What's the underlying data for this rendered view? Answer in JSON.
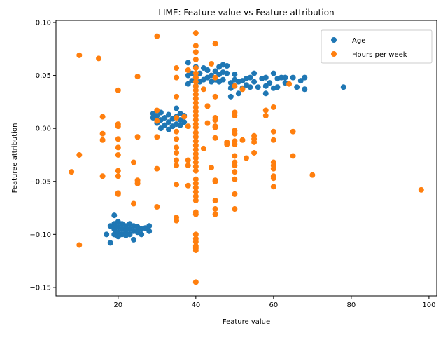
{
  "chart_data": {
    "type": "scatter",
    "title": "LIME: Feature value vs Feature attribution",
    "xlabel": "Feature value",
    "ylabel": "Featuree attribution",
    "xlim": [
      4,
      102
    ],
    "ylim": [
      -0.158,
      0.102
    ],
    "xticks": [
      20,
      40,
      60,
      80,
      100
    ],
    "yticks": [
      -0.15,
      -0.1,
      -0.05,
      0.0,
      0.05,
      0.1
    ],
    "xtick_labels": [
      "20",
      "40",
      "60",
      "80",
      "100"
    ],
    "ytick_labels": [
      "−0.15",
      "−0.10",
      "−0.05",
      "0.00",
      "0.05",
      "0.10"
    ],
    "grid": false,
    "legend_position": "top-right",
    "series": [
      {
        "name": "Age",
        "color": "#1f77b4",
        "points": [
          [
            17,
            -0.1
          ],
          [
            18,
            -0.108
          ],
          [
            18,
            -0.092
          ],
          [
            19,
            -0.082
          ],
          [
            19,
            -0.09
          ],
          [
            19,
            -0.095
          ],
          [
            19,
            -0.1
          ],
          [
            20,
            -0.088
          ],
          [
            20,
            -0.093
          ],
          [
            20,
            -0.098
          ],
          [
            20,
            -0.102
          ],
          [
            21,
            -0.09
          ],
          [
            21,
            -0.095
          ],
          [
            21,
            -0.1
          ],
          [
            22,
            -0.092
          ],
          [
            22,
            -0.097
          ],
          [
            22,
            -0.101
          ],
          [
            23,
            -0.09
          ],
          [
            23,
            -0.095
          ],
          [
            23,
            -0.1
          ],
          [
            24,
            -0.092
          ],
          [
            24,
            -0.097
          ],
          [
            24,
            -0.105
          ],
          [
            25,
            -0.093
          ],
          [
            25,
            -0.098
          ],
          [
            26,
            -0.095
          ],
          [
            26,
            -0.1
          ],
          [
            27,
            -0.094
          ],
          [
            28,
            -0.092
          ],
          [
            28,
            -0.097
          ],
          [
            29,
            0.01
          ],
          [
            29,
            0.014
          ],
          [
            30,
            0.005
          ],
          [
            30,
            0.012
          ],
          [
            31,
            0.0
          ],
          [
            31,
            0.008
          ],
          [
            31,
            0.015
          ],
          [
            32,
            0.003
          ],
          [
            32,
            0.01
          ],
          [
            33,
            -0.001
          ],
          [
            33,
            0.006
          ],
          [
            33,
            0.013
          ],
          [
            34,
            0.002
          ],
          [
            34,
            0.009
          ],
          [
            35,
            0.004
          ],
          [
            35,
            0.011
          ],
          [
            35,
            0.019
          ],
          [
            36,
            0.003
          ],
          [
            36,
            0.008
          ],
          [
            36,
            0.014
          ],
          [
            37,
            0.006
          ],
          [
            37,
            0.012
          ],
          [
            38,
            0.042
          ],
          [
            38,
            0.05
          ],
          [
            38,
            0.062
          ],
          [
            39,
            0.045
          ],
          [
            39,
            0.052
          ],
          [
            40,
            0.04
          ],
          [
            40,
            0.048
          ],
          [
            40,
            0.058
          ],
          [
            41,
            0.044
          ],
          [
            41,
            0.052
          ],
          [
            42,
            0.046
          ],
          [
            42,
            0.057
          ],
          [
            43,
            0.048
          ],
          [
            43,
            0.055
          ],
          [
            44,
            0.044
          ],
          [
            44,
            0.05
          ],
          [
            45,
            0.046
          ],
          [
            45,
            0.054
          ],
          [
            46,
            0.044
          ],
          [
            46,
            0.051
          ],
          [
            46,
            0.058
          ],
          [
            47,
            0.046
          ],
          [
            47,
            0.053
          ],
          [
            47,
            0.06
          ],
          [
            48,
            0.052
          ],
          [
            48,
            0.059
          ],
          [
            49,
            0.03
          ],
          [
            49,
            0.038
          ],
          [
            49,
            0.043
          ],
          [
            50,
            0.04
          ],
          [
            50,
            0.046
          ],
          [
            50,
            0.051
          ],
          [
            51,
            0.033
          ],
          [
            51,
            0.044
          ],
          [
            52,
            0.038
          ],
          [
            52,
            0.045
          ],
          [
            53,
            0.041
          ],
          [
            53,
            0.047
          ],
          [
            54,
            0.039
          ],
          [
            54,
            0.048
          ],
          [
            55,
            0.044
          ],
          [
            55,
            0.052
          ],
          [
            56,
            0.039
          ],
          [
            57,
            0.047
          ],
          [
            58,
            0.033
          ],
          [
            58,
            0.04
          ],
          [
            58,
            0.048
          ],
          [
            59,
            0.043
          ],
          [
            60,
            0.038
          ],
          [
            60,
            0.052
          ],
          [
            61,
            0.039
          ],
          [
            61,
            0.047
          ],
          [
            62,
            0.048
          ],
          [
            63,
            0.043
          ],
          [
            63,
            0.048
          ],
          [
            65,
            0.048
          ],
          [
            66,
            0.039
          ],
          [
            67,
            0.045
          ],
          [
            68,
            0.037
          ],
          [
            68,
            0.048
          ],
          [
            78,
            0.039
          ]
        ]
      },
      {
        "name": "Hours per week",
        "color": "#ff7f0e",
        "points": [
          [
            8,
            -0.041
          ],
          [
            10,
            0.069
          ],
          [
            10,
            -0.025
          ],
          [
            10,
            -0.11
          ],
          [
            15,
            0.066
          ],
          [
            16,
            0.011
          ],
          [
            16,
            -0.005
          ],
          [
            16,
            -0.011
          ],
          [
            16,
            -0.045
          ],
          [
            20,
            0.036
          ],
          [
            20,
            0.004
          ],
          [
            20,
            0.002
          ],
          [
            20,
            -0.01
          ],
          [
            20,
            -0.018
          ],
          [
            20,
            -0.025
          ],
          [
            20,
            -0.04
          ],
          [
            20,
            -0.045
          ],
          [
            20,
            -0.061
          ],
          [
            20,
            -0.062
          ],
          [
            24,
            -0.032
          ],
          [
            24,
            -0.071
          ],
          [
            25,
            0.049
          ],
          [
            25,
            -0.008
          ],
          [
            25,
            -0.049
          ],
          [
            25,
            -0.052
          ],
          [
            30,
            0.087
          ],
          [
            30,
            0.017
          ],
          [
            30,
            0.007
          ],
          [
            30,
            -0.008
          ],
          [
            30,
            -0.038
          ],
          [
            30,
            -0.074
          ],
          [
            35,
            0.057
          ],
          [
            35,
            0.048
          ],
          [
            35,
            0.03
          ],
          [
            35,
            0.01
          ],
          [
            35,
            -0.003
          ],
          [
            35,
            -0.01
          ],
          [
            35,
            -0.018
          ],
          [
            35,
            -0.023
          ],
          [
            35,
            -0.03
          ],
          [
            35,
            -0.035
          ],
          [
            35,
            -0.053
          ],
          [
            35,
            -0.084
          ],
          [
            35,
            -0.087
          ],
          [
            37,
            0.011
          ],
          [
            38,
            0.055
          ],
          [
            38,
            0.002
          ],
          [
            38,
            -0.03
          ],
          [
            38,
            -0.035
          ],
          [
            38,
            -0.054
          ],
          [
            40,
            0.09
          ],
          [
            40,
            0.078
          ],
          [
            40,
            0.072
          ],
          [
            40,
            0.065
          ],
          [
            40,
            0.057
          ],
          [
            40,
            0.052
          ],
          [
            40,
            0.048
          ],
          [
            40,
            0.044
          ],
          [
            40,
            0.04
          ],
          [
            40,
            0.036
          ],
          [
            40,
            0.032
          ],
          [
            40,
            0.028
          ],
          [
            40,
            0.024
          ],
          [
            40,
            0.02
          ],
          [
            40,
            0.016
          ],
          [
            40,
            0.012
          ],
          [
            40,
            0.008
          ],
          [
            40,
            0.004
          ],
          [
            40,
            0.001
          ],
          [
            40,
            -0.004
          ],
          [
            40,
            -0.008
          ],
          [
            40,
            -0.012
          ],
          [
            40,
            -0.016
          ],
          [
            40,
            -0.02
          ],
          [
            40,
            -0.024
          ],
          [
            40,
            -0.028
          ],
          [
            40,
            -0.032
          ],
          [
            40,
            -0.036
          ],
          [
            40,
            -0.04
          ],
          [
            40,
            -0.048
          ],
          [
            40,
            -0.052
          ],
          [
            40,
            -0.056
          ],
          [
            40,
            -0.06
          ],
          [
            40,
            -0.064
          ],
          [
            40,
            -0.068
          ],
          [
            40,
            -0.079
          ],
          [
            40,
            -0.081
          ],
          [
            40,
            -0.1
          ],
          [
            40,
            -0.104
          ],
          [
            40,
            -0.107
          ],
          [
            40,
            -0.111
          ],
          [
            40,
            -0.113
          ],
          [
            40,
            -0.115
          ],
          [
            40,
            -0.145
          ],
          [
            42,
            0.037
          ],
          [
            42,
            -0.019
          ],
          [
            43,
            0.021
          ],
          [
            43,
            0.005
          ],
          [
            44,
            0.061
          ],
          [
            44,
            -0.037
          ],
          [
            45,
            0.08
          ],
          [
            45,
            0.048
          ],
          [
            45,
            0.03
          ],
          [
            45,
            0.01
          ],
          [
            45,
            0.008
          ],
          [
            45,
            0.002
          ],
          [
            45,
            0.001
          ],
          [
            45,
            -0.009
          ],
          [
            45,
            -0.049
          ],
          [
            45,
            -0.05
          ],
          [
            45,
            -0.068
          ],
          [
            45,
            -0.076
          ],
          [
            45,
            -0.081
          ],
          [
            48,
            -0.013
          ],
          [
            48,
            -0.015
          ],
          [
            50,
            0.04
          ],
          [
            50,
            0.015
          ],
          [
            50,
            0.012
          ],
          [
            50,
            -0.002
          ],
          [
            50,
            -0.005
          ],
          [
            50,
            -0.012
          ],
          [
            50,
            -0.015
          ],
          [
            50,
            -0.026
          ],
          [
            50,
            -0.032
          ],
          [
            50,
            -0.035
          ],
          [
            50,
            -0.041
          ],
          [
            50,
            -0.048
          ],
          [
            50,
            -0.062
          ],
          [
            50,
            -0.076
          ],
          [
            52,
            0.037
          ],
          [
            52,
            -0.011
          ],
          [
            53,
            -0.028
          ],
          [
            55,
            -0.007
          ],
          [
            55,
            -0.01
          ],
          [
            55,
            -0.013
          ],
          [
            55,
            -0.023
          ],
          [
            58,
            0.017
          ],
          [
            58,
            0.012
          ],
          [
            60,
            0.02
          ],
          [
            60,
            -0.003
          ],
          [
            60,
            -0.011
          ],
          [
            60,
            -0.032
          ],
          [
            60,
            -0.035
          ],
          [
            60,
            -0.038
          ],
          [
            60,
            -0.045
          ],
          [
            60,
            -0.047
          ],
          [
            60,
            -0.055
          ],
          [
            64,
            0.042
          ],
          [
            65,
            -0.003
          ],
          [
            65,
            -0.026
          ],
          [
            70,
            -0.044
          ],
          [
            98,
            -0.058
          ]
        ]
      }
    ]
  }
}
